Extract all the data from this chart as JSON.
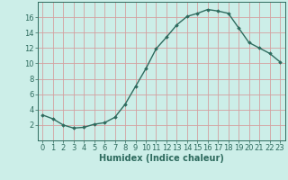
{
  "x": [
    0,
    1,
    2,
    3,
    4,
    5,
    6,
    7,
    8,
    9,
    10,
    11,
    12,
    13,
    14,
    15,
    16,
    17,
    18,
    19,
    20,
    21,
    22,
    23
  ],
  "y": [
    3.3,
    2.8,
    2.0,
    1.6,
    1.7,
    2.1,
    2.3,
    3.0,
    4.7,
    7.0,
    9.3,
    11.9,
    13.4,
    15.0,
    16.1,
    16.5,
    17.0,
    16.8,
    16.5,
    14.6,
    12.7,
    12.0,
    11.3,
    10.2
  ],
  "line_color": "#2e6b5e",
  "marker": "D",
  "marker_size": 1.8,
  "bg_color": "#cceee8",
  "grid_color_major": "#d4a0a0",
  "grid_color_minor": "#cceee8",
  "xlabel": "Humidex (Indice chaleur)",
  "ylim": [
    0,
    18
  ],
  "xlim": [
    -0.5,
    23.5
  ],
  "yticks": [
    2,
    4,
    6,
    8,
    10,
    12,
    14,
    16
  ],
  "xticks": [
    0,
    1,
    2,
    3,
    4,
    5,
    6,
    7,
    8,
    9,
    10,
    11,
    12,
    13,
    14,
    15,
    16,
    17,
    18,
    19,
    20,
    21,
    22,
    23
  ],
  "xlabel_fontsize": 7.0,
  "tick_fontsize": 6.0,
  "line_width": 1.0
}
